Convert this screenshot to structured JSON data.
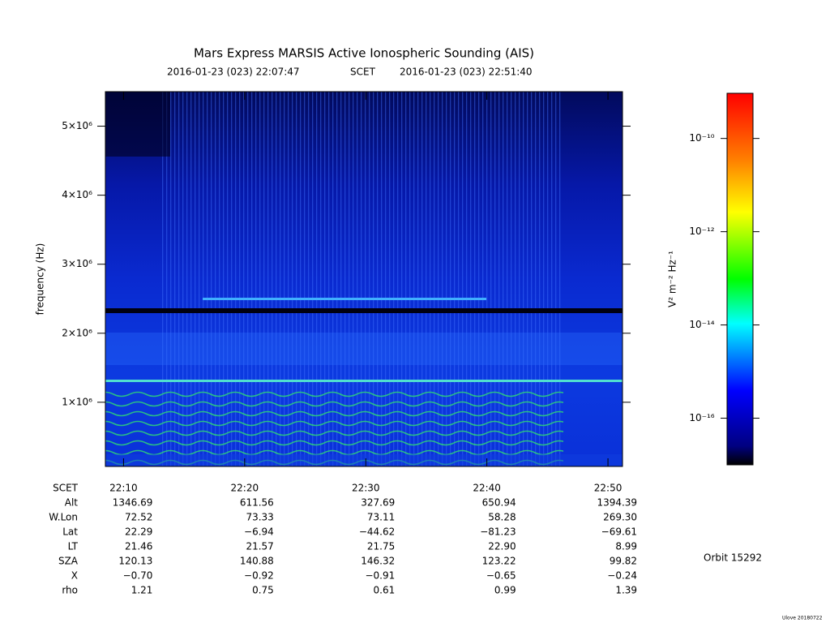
{
  "chart_data": {
    "type": "spectrogram",
    "title": "Mars Express MARSIS Active Ionospheric Sounding (AIS)",
    "subtitle": [
      "2016-01-23 (023) 22:07:47",
      "SCET",
      "2016-01-23 (023) 22:51:40"
    ],
    "ylabel": "frequency (Hz)",
    "xlabel": "SCET",
    "xlim": [
      8.5,
      51.2
    ],
    "xticks": [
      {
        "value": 10,
        "label": "22:10"
      },
      {
        "value": 20,
        "label": "22:20"
      },
      {
        "value": 30,
        "label": "22:30"
      },
      {
        "value": 40,
        "label": "22:40"
      },
      {
        "value": 50,
        "label": "22:50"
      }
    ],
    "ylim": [
      70000,
      5500000
    ],
    "yticks": [
      {
        "value": 1000000,
        "label": "1×10⁶"
      },
      {
        "value": 2000000,
        "label": "2×10⁶"
      },
      {
        "value": 3000000,
        "label": "3×10⁶"
      },
      {
        "value": 4000000,
        "label": "4×10⁶"
      },
      {
        "value": 5000000,
        "label": "5×10⁶"
      }
    ],
    "colorbar": {
      "scale": "log",
      "label": "V² m⁻² Hz⁻¹",
      "lim": [
        1e-17,
        9.3e-10
      ],
      "ticks": [
        {
          "value": 1e-10,
          "label": "10⁻¹⁰"
        },
        {
          "value": 1e-12,
          "label": "10⁻¹²"
        },
        {
          "value": 1e-14,
          "label": "10⁻¹⁴"
        },
        {
          "value": 1e-16,
          "label": "10⁻¹⁶"
        }
      ]
    },
    "table": {
      "rows": [
        {
          "label": "Alt",
          "values": [
            "1346.69",
            "611.56",
            "327.69",
            "650.94",
            "1394.39"
          ]
        },
        {
          "label": "W.Lon",
          "values": [
            "72.52",
            "73.33",
            "73.11",
            "58.28",
            "269.30"
          ]
        },
        {
          "label": "Lat",
          "values": [
            "22.29",
            "−6.94",
            "−44.62",
            "−81.23",
            "−69.61"
          ]
        },
        {
          "label": "LT",
          "values": [
            "21.46",
            "21.57",
            "21.75",
            "22.90",
            "8.99"
          ]
        },
        {
          "label": "SZA",
          "values": [
            "120.13",
            "140.88",
            "146.32",
            "123.22",
            "99.82"
          ]
        },
        {
          "label": "X",
          "values": [
            "−0.70",
            "−0.92",
            "−0.91",
            "−0.65",
            "−0.24"
          ]
        },
        {
          "label": "rho",
          "values": [
            "1.21",
            "0.75",
            "0.61",
            "0.99",
            "1.39"
          ]
        }
      ]
    },
    "orbit": "Orbit 15292",
    "credit": "Ulove 20180722"
  }
}
